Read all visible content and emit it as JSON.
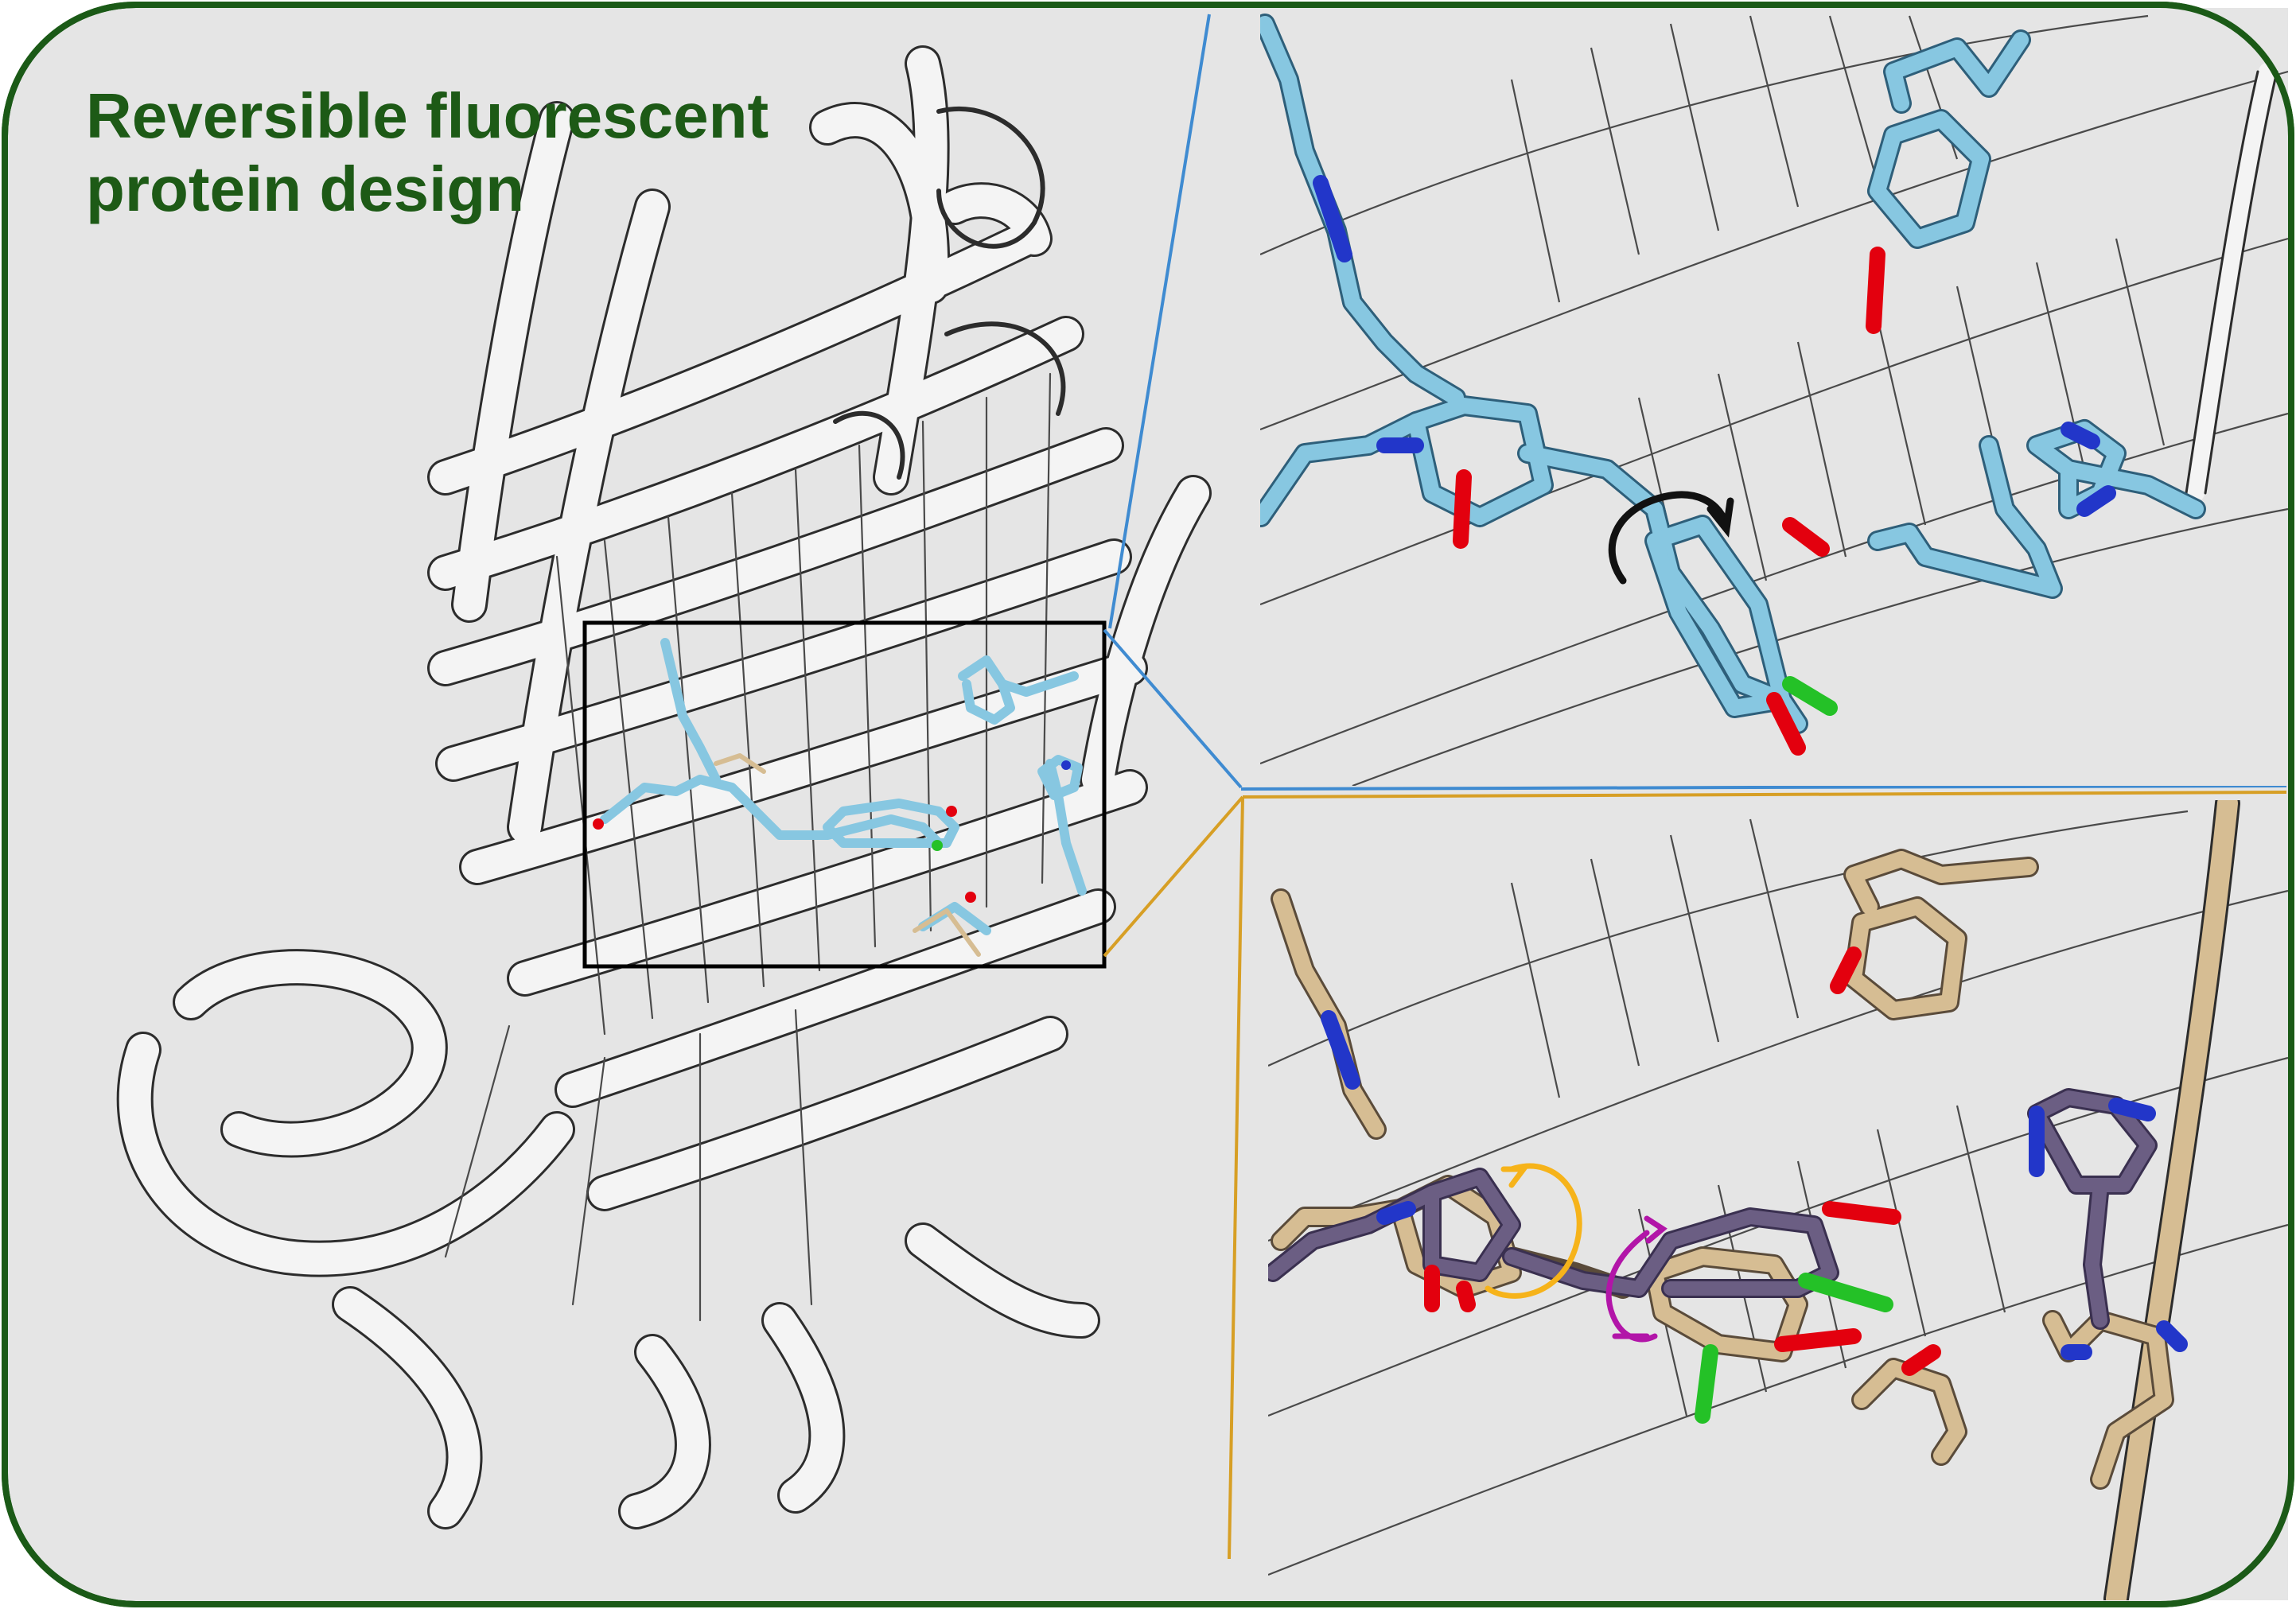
{
  "title": {
    "line1": "Reversible fluorescent",
    "line2": "protein design"
  },
  "colors": {
    "frame": "#1b5a17",
    "background": "#e5e5e5",
    "title_text": "#1d5a16",
    "ribbon": "#f4f4f4",
    "ribbon_edge": "#2c2c2c",
    "carbon_light_blue": "#87c7e1",
    "carbon_tan": "#d6bd93",
    "carbon_purple": "#6b5e83",
    "oxygen": "#e3000e",
    "nitrogen": "#2236c9",
    "chlorine": "#24c127",
    "zoom_line_blue": "#3f8bd1",
    "zoom_line_gold": "#d79f25",
    "arrow_black": "#111111",
    "arrow_orange": "#f6b31a",
    "arrow_magenta": "#b215a8"
  },
  "panels": {
    "overview": "protein-overview",
    "top_inset": "chromophore-light-blue-state",
    "bottom_inset": "chromophore-overlay-state"
  }
}
